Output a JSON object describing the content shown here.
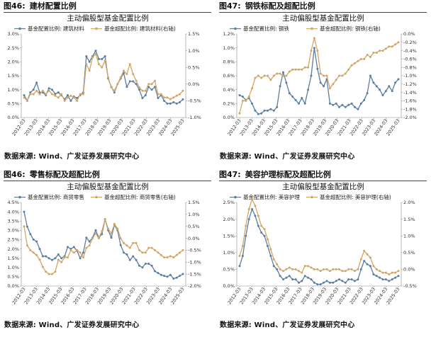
{
  "colors": {
    "blue": "#5a7ea1",
    "gold": "#d2a567",
    "header_rule": "#9a1f24"
  },
  "panels": [
    {
      "fig_no": "图46:",
      "fig_title": "建材配置比例",
      "source": "数据来源: Wind、广发证券发展研究中心",
      "chart_data": {
        "type": "line",
        "title": "主动偏股型基金配置比例",
        "x_labels": [
          "2012-03",
          "2013-03",
          "2014-03",
          "2015-03",
          "2016-03",
          "2017-03",
          "2018-03",
          "2019-03",
          "2020-03",
          "2021-03",
          "2022-03",
          "2023-03",
          "2024-03",
          "2025-03"
        ],
        "y_left": {
          "min": 0,
          "max": 3.0,
          "ticks": [
            "0.0%",
            "0.5%",
            "1.0%",
            "1.5%",
            "2.0%",
            "2.5%",
            "3.0%"
          ]
        },
        "y_right": {
          "min": -1.0,
          "max": 1.5,
          "ticks": [
            "-1.0%",
            "-0.5%",
            "0.0%",
            "0.5%",
            "1.0%",
            "1.5%"
          ]
        },
        "series": [
          {
            "name": "基金配置比例: 建筑材料",
            "axis": "left",
            "color": "blue",
            "values": [
              0.8,
              0.6,
              0.9,
              1.0,
              1.25,
              0.9,
              0.9,
              0.8,
              1.05,
              1.0,
              0.85,
              0.9,
              0.8,
              0.65,
              0.8,
              0.6,
              0.75,
              0.7,
              0.8,
              0.9,
              2.2,
              2.0,
              2.2,
              2.4,
              2.1,
              2.1,
              2.2,
              1.4,
              1.1,
              0.9,
              1.2,
              1.4,
              1.6,
              1.1,
              1.3,
              1.3,
              1.2,
              1.0,
              0.7,
              0.8,
              1.1,
              1.0,
              1.1,
              0.7,
              0.8,
              0.6,
              0.5,
              0.5,
              0.55,
              0.5,
              0.55,
              0.65
            ]
          },
          {
            "name": "基金超配比例: 建筑材料(右轴)",
            "axis": "right",
            "color": "gold",
            "values": [
              -0.4,
              -0.5,
              -0.3,
              -0.3,
              -0.2,
              -0.3,
              -0.2,
              -0.3,
              -0.2,
              -0.3,
              -0.35,
              -0.4,
              -0.3,
              -0.5,
              -0.4,
              -0.35,
              -0.4,
              -0.5,
              -0.3,
              -0.3,
              0.6,
              0.4,
              0.8,
              0.9,
              0.6,
              0.5,
              0.7,
              0.2,
              -0.1,
              -0.2,
              0.0,
              0.2,
              0.4,
              0.3,
              0.6,
              0.3,
              0.1,
              -0.1,
              -0.2,
              -0.2,
              0.0,
              0.0,
              0.1,
              -0.3,
              -0.3,
              -0.4,
              -0.4,
              -0.45,
              -0.4,
              -0.35,
              -0.3,
              -0.2
            ]
          }
        ]
      }
    },
    {
      "fig_no": "图47:",
      "fig_title": "钢铁标配及超配比例",
      "source": "数据来源: Wind、广发证券发展研究中心",
      "chart_data": {
        "type": "line",
        "title": "主动偏股型基金配置比例",
        "x_labels": [
          "2012-03",
          "2013-03",
          "2014-03",
          "2015-03",
          "2016-03",
          "2017-03",
          "2018-03",
          "2019-03",
          "2020-03",
          "2021-03",
          "2022-03",
          "2023-03",
          "2024-03",
          "2025-03"
        ],
        "y_left": {
          "min": 0,
          "max": 1.2,
          "ticks": [
            "0.0%",
            "0.2%",
            "0.4%",
            "0.6%",
            "0.8%",
            "1.0%",
            "1.2%"
          ]
        },
        "y_right": {
          "min": -2.0,
          "max": 0,
          "ticks": [
            "-2.0%",
            "-1.8%",
            "-1.6%",
            "-1.4%",
            "-1.2%",
            "-1.0%",
            "-0.8%",
            "-0.6%",
            "-0.4%",
            "-0.2%",
            "0.0%"
          ]
        },
        "series": [
          {
            "name": "基金配置比例: 钢铁",
            "axis": "left",
            "color": "blue",
            "values": [
              0.32,
              0.3,
              0.25,
              0.28,
              0.2,
              0.1,
              0.05,
              0.06,
              0.1,
              0.1,
              0.12,
              0.1,
              0.15,
              0.45,
              0.65,
              0.5,
              0.35,
              0.3,
              0.25,
              0.2,
              0.28,
              0.2,
              0.4,
              0.6,
              1.0,
              0.7,
              0.5,
              0.45,
              0.55,
              0.2,
              0.18,
              0.2,
              0.15,
              0.18,
              0.15,
              0.18,
              0.2,
              0.15,
              0.12,
              0.2,
              0.25,
              0.35,
              0.6,
              0.5,
              0.45,
              0.4,
              0.32,
              0.38,
              0.45,
              0.38,
              0.5,
              0.55
            ]
          },
          {
            "name": "基金超配比例: 钢铁(右轴)",
            "axis": "right",
            "color": "gold",
            "values": [
              -1.9,
              -1.6,
              -1.6,
              -1.5,
              -1.3,
              -1.05,
              -1.0,
              -1.05,
              -1.0,
              -1.0,
              -1.1,
              -1.0,
              -0.95,
              -0.95,
              -1.0,
              -1.0,
              -0.9,
              -0.85,
              -0.85,
              -0.85,
              -0.85,
              -0.8,
              -0.8,
              -0.4,
              -0.1,
              -0.4,
              -0.95,
              -1.0,
              -1.0,
              -1.3,
              -1.2,
              -1.1,
              -1.0,
              -1.0,
              -0.95,
              -0.85,
              -0.75,
              -0.7,
              -0.65,
              -0.6,
              -0.6,
              -0.5,
              -0.55,
              -0.45,
              -0.45,
              -0.4,
              -0.4,
              -0.35,
              -0.3,
              -0.3,
              -0.25,
              -0.2
            ]
          }
        ]
      }
    },
    {
      "fig_no": "图46:",
      "fig_title": "零售标配及超配比例",
      "source": "数据来源: Wind、广发证券发展研究中心",
      "chart_data": {
        "type": "line",
        "title": "主动偏股型基金配置比例",
        "x_labels": [
          "2012-03",
          "2013-03",
          "2014-03",
          "2015-03",
          "2016-03",
          "2017-03",
          "2018-03",
          "2019-03",
          "2020-03",
          "2021-03",
          "2022-03",
          "2023-03",
          "2024-03",
          "2025-03"
        ],
        "y_left": {
          "min": 0,
          "max": 4.5,
          "ticks": [
            "0.0%",
            "0.5%",
            "1.0%",
            "1.5%",
            "2.0%",
            "2.5%",
            "3.0%",
            "3.5%",
            "4.0%",
            "4.5%"
          ]
        },
        "y_right": {
          "min": -2.0,
          "max": 1.5,
          "ticks": [
            "-2.0%",
            "-1.5%",
            "-1.0%",
            "-0.5%",
            "0.0%",
            "0.5%",
            "1.0%",
            "1.5%"
          ]
        },
        "series": [
          {
            "name": "基金配置比例: 商贸零售",
            "axis": "left",
            "color": "blue",
            "values": [
              4.0,
              3.2,
              2.8,
              2.5,
              2.4,
              2.0,
              1.6,
              1.6,
              1.5,
              1.4,
              1.5,
              1.7,
              1.5,
              1.6,
              2.1,
              2.0,
              2.1,
              1.9,
              1.5,
              1.8,
              2.6,
              2.4,
              2.6,
              3.0,
              2.6,
              2.8,
              3.6,
              3.0,
              2.6,
              3.3,
              3.0,
              2.2,
              1.8,
              1.7,
              1.4,
              1.6,
              1.4,
              1.1,
              1.0,
              1.2,
              1.2,
              1.1,
              0.8,
              0.7,
              0.6,
              0.55,
              0.5,
              0.6,
              0.4,
              0.45,
              0.55,
              0.65
            ]
          },
          {
            "name": "基金超配比例: 商贸零售(右轴)",
            "axis": "right",
            "color": "gold",
            "values": [
              0.5,
              -0.3,
              -0.5,
              -0.6,
              -0.7,
              -0.9,
              -1.2,
              -1.4,
              -1.5,
              -1.5,
              -1.4,
              -0.9,
              -1.0,
              -0.8,
              -0.8,
              -0.5,
              -0.6,
              -0.5,
              -0.6,
              -0.8,
              -0.4,
              -0.3,
              0.0,
              0.2,
              0.0,
              0.3,
              0.8,
              0.4,
              0.2,
              0.6,
              0.4,
              0.0,
              -0.2,
              -0.3,
              -0.4,
              -0.2,
              -0.2,
              -0.5,
              -0.6,
              -0.6,
              -0.4,
              -0.4,
              -0.5,
              -0.6,
              -0.7,
              -0.8,
              -0.8,
              -0.75,
              -0.8,
              -0.7,
              -0.6,
              -0.5
            ]
          }
        ]
      }
    },
    {
      "fig_no": "图47:",
      "fig_title": "美容护理标配及超配比例",
      "source": "数据来源: Wind、广发证券发展研究中心",
      "chart_data": {
        "type": "line",
        "title": "主动偏股型基金配置比例",
        "x_labels": [
          "2012-03",
          "2013-03",
          "2014-03",
          "2015-03",
          "2016-03",
          "2017-03",
          "2018-03",
          "2019-03",
          "2020-03",
          "2021-03",
          "2022-03",
          "2023-03",
          "2024-03",
          "2025-03"
        ],
        "y_left": {
          "min": 0,
          "max": 2.5,
          "ticks": [
            "0.0%",
            "0.5%",
            "1.0%",
            "1.5%",
            "2.0%",
            "2.5%"
          ]
        },
        "y_right": {
          "min": -0.5,
          "max": 2.0,
          "ticks": [
            "-0.5%",
            "0.0%",
            "0.5%",
            "1.0%",
            "1.5%",
            "2.0%"
          ]
        },
        "series": [
          {
            "name": "基金配置比例: 美容护理",
            "axis": "left",
            "color": "blue",
            "values": [
              0.6,
              0.9,
              1.5,
              2.0,
              2.3,
              2.1,
              1.8,
              1.6,
              1.5,
              1.2,
              0.9,
              0.6,
              0.5,
              0.3,
              0.2,
              0.25,
              0.3,
              0.2,
              0.2,
              0.1,
              0.15,
              0.3,
              0.25,
              0.2,
              0.1,
              0.05,
              0.05,
              0.1,
              0.15,
              0.1,
              0.1,
              0.15,
              0.2,
              0.15,
              0.1,
              0.2,
              0.2,
              0.15,
              0.2,
              0.5,
              0.75,
              0.65,
              0.6,
              0.35,
              0.3,
              0.25,
              0.2,
              0.2,
              0.15,
              0.2,
              0.25,
              0.3
            ]
          },
          {
            "name": "基金超配比例: 美容护理(右轴)",
            "axis": "right",
            "color": "gold",
            "values": [
              0.4,
              0.7,
              1.3,
              1.8,
              2.1,
              1.9,
              1.6,
              1.3,
              1.2,
              0.9,
              0.6,
              0.3,
              0.15,
              0.0,
              -0.05,
              0.0,
              0.05,
              0.0,
              0.0,
              -0.05,
              -0.1,
              0.1,
              0.1,
              0.05,
              0.0,
              0.0,
              -0.05,
              0.0,
              0.0,
              -0.05,
              0.0,
              0.0,
              0.0,
              -0.05,
              -0.05,
              0.0,
              0.0,
              -0.05,
              0.0,
              0.3,
              0.55,
              0.45,
              0.35,
              0.1,
              0.0,
              -0.05,
              -0.1,
              -0.1,
              -0.15,
              -0.1,
              -0.1,
              -0.05
            ]
          }
        ]
      }
    }
  ]
}
